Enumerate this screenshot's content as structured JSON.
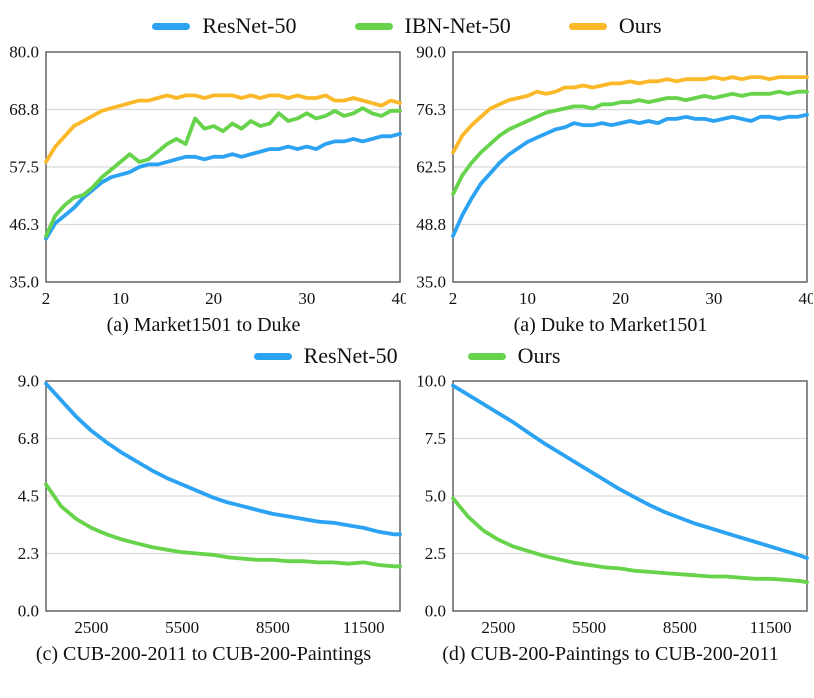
{
  "colors": {
    "blue": "#2BA2F2",
    "green": "#66D34B",
    "orange": "#FBB829",
    "grid": "#D9D9D9",
    "axis": "#595959",
    "text": "#111111"
  },
  "legends": {
    "top": {
      "items": [
        {
          "label": "ResNet-50",
          "color": "blue"
        },
        {
          "label": "IBN-Net-50",
          "color": "green"
        },
        {
          "label": "Ours",
          "color": "orange"
        }
      ]
    },
    "mid": {
      "items": [
        {
          "label": "ResNet-50",
          "color": "blue"
        },
        {
          "label": "Ours",
          "color": "green"
        }
      ]
    }
  },
  "chart_data": [
    {
      "type": "line",
      "title": "(a) Market1501 to Duke",
      "xlabel": "",
      "ylabel": "",
      "grid": "horizontal",
      "legend_position": "top-shared",
      "xlim": [
        2,
        40
      ],
      "xticks": [
        2,
        10,
        20,
        30,
        40
      ],
      "xtick_labels": [
        "2",
        "10",
        "20",
        "30",
        "40"
      ],
      "ylim": [
        35,
        80
      ],
      "ytick_values": [
        35,
        46.25,
        57.5,
        68.75,
        80
      ],
      "ytick_labels": [
        "35.0",
        "46.3",
        "57.5",
        "68.8",
        "80.0"
      ],
      "x": [
        2,
        3,
        4,
        5,
        6,
        7,
        8,
        9,
        10,
        11,
        12,
        13,
        14,
        15,
        16,
        17,
        18,
        19,
        20,
        21,
        22,
        23,
        24,
        25,
        26,
        27,
        28,
        29,
        30,
        31,
        32,
        33,
        34,
        35,
        36,
        37,
        38,
        39,
        40
      ],
      "series": [
        {
          "name": "ResNet-50",
          "color": "blue",
          "values": [
            43.5,
            46.5,
            48,
            49.5,
            51.5,
            53,
            54.5,
            55.5,
            56,
            56.5,
            57.5,
            58,
            58,
            58.5,
            59,
            59.5,
            59.5,
            59,
            59.5,
            59.5,
            60,
            59.5,
            60,
            60.5,
            61,
            61,
            61.5,
            61,
            61.5,
            61,
            62,
            62.5,
            62.5,
            63,
            62.5,
            63,
            63.5,
            63.5,
            64
          ]
        },
        {
          "name": "IBN-Net-50",
          "color": "green",
          "values": [
            44,
            48,
            50,
            51.5,
            52,
            53.5,
            55.5,
            57,
            58.5,
            60,
            58.5,
            59,
            60.5,
            62,
            63,
            62,
            67,
            65,
            65.5,
            64.5,
            66,
            65,
            66.5,
            65.5,
            66,
            68,
            66.5,
            67,
            68,
            67,
            67.5,
            68.5,
            67.5,
            68,
            69,
            68,
            67.5,
            68.5,
            68.5
          ]
        },
        {
          "name": "Ours",
          "color": "orange",
          "values": [
            58.5,
            61.5,
            63.5,
            65.5,
            66.5,
            67.5,
            68.5,
            69,
            69.5,
            70,
            70.5,
            70.5,
            71,
            71.5,
            71,
            71.5,
            71.5,
            71,
            71.5,
            71.5,
            71.5,
            71,
            71.5,
            71,
            71.5,
            71.5,
            71,
            71.5,
            71,
            71,
            71.5,
            70.5,
            70.5,
            71,
            70.5,
            70,
            69.5,
            70.5,
            70
          ]
        }
      ]
    },
    {
      "type": "line",
      "title": "(a) Duke to Market1501",
      "xlabel": "",
      "ylabel": "",
      "grid": "horizontal",
      "legend_position": "top-shared",
      "xlim": [
        2,
        40
      ],
      "xticks": [
        2,
        10,
        20,
        30,
        40
      ],
      "xtick_labels": [
        "2",
        "10",
        "20",
        "30",
        "40"
      ],
      "ylim": [
        35,
        90
      ],
      "ytick_values": [
        35,
        48.75,
        62.5,
        76.25,
        90
      ],
      "ytick_labels": [
        "35.0",
        "48.8",
        "62.5",
        "76.3",
        "90.0"
      ],
      "x": [
        2,
        3,
        4,
        5,
        6,
        7,
        8,
        9,
        10,
        11,
        12,
        13,
        14,
        15,
        16,
        17,
        18,
        19,
        20,
        21,
        22,
        23,
        24,
        25,
        26,
        27,
        28,
        29,
        30,
        31,
        32,
        33,
        34,
        35,
        36,
        37,
        38,
        39,
        40
      ],
      "series": [
        {
          "name": "ResNet-50",
          "color": "blue",
          "values": [
            46,
            51,
            55,
            58.5,
            61,
            63.5,
            65.5,
            67,
            68.5,
            69.5,
            70.5,
            71.5,
            72,
            73,
            72.5,
            72.5,
            73,
            72.5,
            73,
            73.5,
            73,
            73.5,
            73,
            74,
            74,
            74.5,
            74,
            74,
            73.5,
            74,
            74.5,
            74,
            73.5,
            74.5,
            74.5,
            74,
            74.5,
            74.5,
            75
          ]
        },
        {
          "name": "IBN-Net-50",
          "color": "green",
          "values": [
            56,
            60.5,
            63.5,
            66,
            68,
            70,
            71.5,
            72.5,
            73.5,
            74.5,
            75.5,
            76,
            76.5,
            77,
            77,
            76.5,
            77.5,
            77.5,
            78,
            78,
            78.5,
            78,
            78.5,
            79,
            79,
            78.5,
            79,
            79.5,
            79,
            79.5,
            80,
            79.5,
            80,
            80,
            80,
            80.5,
            80,
            80.5,
            80.5
          ]
        },
        {
          "name": "Ours",
          "color": "orange",
          "values": [
            66,
            70,
            72.5,
            74.5,
            76.5,
            77.5,
            78.5,
            79,
            79.5,
            80.5,
            80,
            80.5,
            81.5,
            81.5,
            82,
            81.5,
            82,
            82.5,
            82.5,
            83,
            82.5,
            83,
            83,
            83.5,
            83,
            83.5,
            83.5,
            83.5,
            84,
            83.5,
            84,
            83.5,
            84,
            84,
            83.5,
            84,
            84,
            84,
            84
          ]
        }
      ]
    },
    {
      "type": "line",
      "title": "(c) CUB-200-2011 to CUB-200-Paintings",
      "xlabel": "",
      "ylabel": "",
      "grid": "horizontal",
      "legend_position": "mid-shared",
      "xlim": [
        1000,
        12700
      ],
      "xticks": [
        2500,
        5500,
        8500,
        11500
      ],
      "xtick_labels": [
        "2500",
        "5500",
        "8500",
        "11500"
      ],
      "ylim": [
        0,
        9
      ],
      "ytick_values": [
        0,
        2.25,
        4.5,
        6.75,
        9
      ],
      "ytick_labels": [
        "0.0",
        "2.3",
        "4.5",
        "6.8",
        "9.0"
      ],
      "x": [
        1000,
        1500,
        2000,
        2500,
        3000,
        3500,
        4000,
        4500,
        5000,
        5500,
        6000,
        6500,
        7000,
        7500,
        8000,
        8500,
        9000,
        9500,
        10000,
        10500,
        11000,
        11500,
        12000,
        12500,
        12700
      ],
      "series": [
        {
          "name": "ResNet-50",
          "color": "blue",
          "values": [
            8.9,
            8.25,
            7.6,
            7.05,
            6.6,
            6.2,
            5.85,
            5.5,
            5.2,
            4.95,
            4.7,
            4.45,
            4.25,
            4.1,
            3.95,
            3.8,
            3.7,
            3.6,
            3.5,
            3.45,
            3.35,
            3.25,
            3.1,
            3.0,
            3.0
          ]
        },
        {
          "name": "Ours",
          "color": "green",
          "values": [
            4.95,
            4.1,
            3.6,
            3.25,
            3.0,
            2.8,
            2.65,
            2.5,
            2.4,
            2.3,
            2.25,
            2.2,
            2.1,
            2.05,
            2.0,
            2.0,
            1.95,
            1.95,
            1.9,
            1.9,
            1.85,
            1.9,
            1.8,
            1.75,
            1.75
          ]
        }
      ]
    },
    {
      "type": "line",
      "title": "(d) CUB-200-Paintings to CUB-200-2011",
      "xlabel": "",
      "ylabel": "",
      "grid": "horizontal",
      "legend_position": "mid-shared",
      "xlim": [
        1000,
        12700
      ],
      "xticks": [
        2500,
        5500,
        8500,
        11500
      ],
      "xtick_labels": [
        "2500",
        "5500",
        "8500",
        "11500"
      ],
      "ylim": [
        0,
        10
      ],
      "ytick_values": [
        0,
        2.5,
        5,
        7.5,
        10
      ],
      "ytick_labels": [
        "0.0",
        "2.5",
        "5.0",
        "7.5",
        "10.0"
      ],
      "x": [
        1000,
        1500,
        2000,
        2500,
        3000,
        3500,
        4000,
        4500,
        5000,
        5500,
        6000,
        6500,
        7000,
        7500,
        8000,
        8500,
        9000,
        9500,
        10000,
        10500,
        11000,
        11500,
        12000,
        12500,
        12700
      ],
      "series": [
        {
          "name": "ResNet-50",
          "color": "blue",
          "values": [
            9.8,
            9.4,
            9.0,
            8.6,
            8.2,
            7.75,
            7.3,
            6.9,
            6.5,
            6.1,
            5.7,
            5.3,
            4.95,
            4.6,
            4.3,
            4.05,
            3.8,
            3.6,
            3.4,
            3.2,
            3.0,
            2.8,
            2.6,
            2.4,
            2.3
          ]
        },
        {
          "name": "Ours",
          "color": "green",
          "values": [
            4.9,
            4.1,
            3.5,
            3.1,
            2.8,
            2.6,
            2.4,
            2.25,
            2.1,
            2.0,
            1.9,
            1.85,
            1.75,
            1.7,
            1.65,
            1.6,
            1.55,
            1.5,
            1.5,
            1.45,
            1.4,
            1.4,
            1.35,
            1.3,
            1.25
          ]
        }
      ]
    }
  ]
}
